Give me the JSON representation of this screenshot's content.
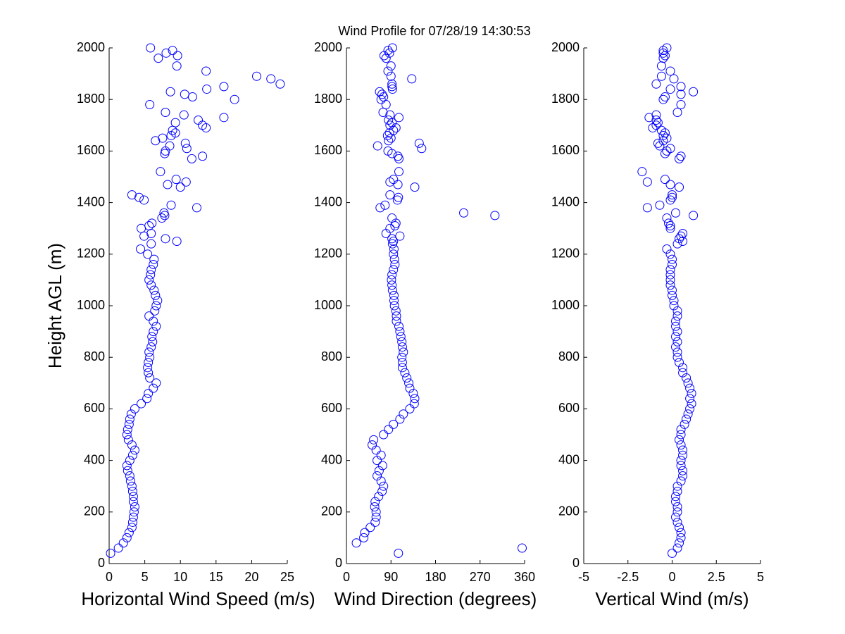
{
  "chart_data": [
    {
      "type": "scatter",
      "title": "Wind Profile for  07/28/19 14:30:53",
      "xlabel": "Horizontal Wind Speed (m/s)",
      "ylabel": "Height AGL (m)",
      "color": "#0000ff",
      "xlim": [
        0,
        25
      ],
      "xticks": [
        0,
        5,
        10,
        15,
        20,
        25
      ],
      "ylim": [
        0,
        2000
      ],
      "yticks": [
        0,
        200,
        400,
        600,
        800,
        1000,
        1200,
        1400,
        1600,
        1800,
        2000
      ],
      "y": [
        40,
        60,
        80,
        100,
        120,
        140,
        160,
        180,
        200,
        220,
        240,
        260,
        280,
        300,
        320,
        340,
        360,
        380,
        400,
        420,
        440,
        460,
        480,
        500,
        520,
        540,
        560,
        580,
        600,
        620,
        640,
        660,
        680,
        700,
        720,
        740,
        760,
        780,
        800,
        820,
        840,
        860,
        880,
        900,
        920,
        940,
        960,
        980,
        1000,
        1020,
        1040,
        1060,
        1080,
        1100,
        1120,
        1140,
        1160,
        1180,
        1200,
        1220,
        1240,
        1250,
        1260,
        1270,
        1280,
        1300,
        1310,
        1320,
        1340,
        1350,
        1360,
        1380,
        1390,
        1410,
        1420,
        1430,
        1460,
        1470,
        1480,
        1490,
        1520,
        1570,
        1580,
        1590,
        1600,
        1610,
        1620,
        1630,
        1640,
        1650,
        1660,
        1670,
        1680,
        1690,
        1700,
        1710,
        1720,
        1730,
        1740,
        1750,
        1780,
        1800,
        1810,
        1820,
        1830,
        1840,
        1850,
        1860,
        1880,
        1890,
        1910,
        1930,
        1960,
        1970,
        1980,
        1990,
        2000
      ],
      "x": [
        0.2,
        1.3,
        2.0,
        2.5,
        2.8,
        3.2,
        3.3,
        3.4,
        3.5,
        3.6,
        3.4,
        3.4,
        3.3,
        3.2,
        3.0,
        2.9,
        2.6,
        2.5,
        2.9,
        3.3,
        3.6,
        3.2,
        2.7,
        2.5,
        2.6,
        2.8,
        2.9,
        3.1,
        3.6,
        4.5,
        5.3,
        5.5,
        6.2,
        6.6,
        5.7,
        5.5,
        5.4,
        5.5,
        5.7,
        5.6,
        5.9,
        6.1,
        6.0,
        6.2,
        6.6,
        6.2,
        5.6,
        6.4,
        6.6,
        6.8,
        6.5,
        6.3,
        5.9,
        5.6,
        5.8,
        5.9,
        6.2,
        6.3,
        5.4,
        4.4,
        5.9,
        9.5,
        7.9,
        4.9,
        5.9,
        4.5,
        5.6,
        6.0,
        7.4,
        7.8,
        7.7,
        12.3,
        8.7,
        4.9,
        4.2,
        3.2,
        10.0,
        8.2,
        10.8,
        9.4,
        7.2,
        11.6,
        13.1,
        7.8,
        7.9,
        10.9,
        8.5,
        10.7,
        6.5,
        7.5,
        8.7,
        9.3,
        8.9,
        13.6,
        13.1,
        9.3,
        12.5,
        16.1,
        10.5,
        7.9,
        5.7,
        17.6,
        11.7,
        10.6,
        8.6,
        13.7,
        16.1,
        24.0,
        22.7,
        20.7,
        13.6,
        9.5,
        6.9,
        9.6,
        8.0,
        8.9,
        5.8
      ]
    },
    {
      "type": "scatter",
      "xlabel": "Wind Direction (degrees)",
      "color": "#0000ff",
      "xlim": [
        0,
        360
      ],
      "xticks": [
        0,
        90,
        180,
        270,
        360
      ],
      "ylim": [
        0,
        2000
      ],
      "yticks": [
        0,
        200,
        400,
        600,
        800,
        1000,
        1200,
        1400,
        1600,
        1800,
        2000
      ],
      "y": [
        40,
        60,
        80,
        100,
        120,
        140,
        160,
        180,
        200,
        220,
        240,
        260,
        280,
        300,
        320,
        340,
        360,
        380,
        400,
        420,
        440,
        460,
        480,
        500,
        520,
        540,
        560,
        580,
        600,
        620,
        640,
        660,
        680,
        700,
        720,
        740,
        760,
        780,
        800,
        820,
        840,
        860,
        880,
        900,
        920,
        940,
        960,
        980,
        1000,
        1020,
        1040,
        1060,
        1080,
        1100,
        1120,
        1140,
        1160,
        1180,
        1200,
        1220,
        1240,
        1250,
        1260,
        1270,
        1280,
        1300,
        1310,
        1320,
        1340,
        1350,
        1360,
        1380,
        1390,
        1410,
        1420,
        1430,
        1460,
        1470,
        1480,
        1490,
        1520,
        1570,
        1580,
        1590,
        1600,
        1610,
        1620,
        1630,
        1640,
        1650,
        1660,
        1670,
        1680,
        1690,
        1700,
        1710,
        1720,
        1730,
        1740,
        1750,
        1780,
        1800,
        1810,
        1820,
        1830,
        1840,
        1850,
        1860,
        1880,
        1890,
        1910,
        1930,
        1960,
        1970,
        1980,
        1990,
        2000
      ],
      "x": [
        105,
        355,
        20,
        35,
        37,
        48,
        58,
        60,
        60,
        57,
        58,
        65,
        72,
        75,
        70,
        62,
        66,
        73,
        62,
        70,
        60,
        52,
        55,
        75,
        85,
        95,
        108,
        115,
        128,
        137,
        138,
        135,
        128,
        126,
        122,
        118,
        113,
        113,
        112,
        115,
        113,
        112,
        110,
        108,
        106,
        101,
        101,
        100,
        97,
        96,
        96,
        93,
        92,
        91,
        92,
        95,
        98,
        97,
        95,
        96,
        93,
        95,
        92,
        108,
        80,
        88,
        98,
        100,
        92,
        300,
        237,
        68,
        78,
        103,
        105,
        88,
        138,
        104,
        88,
        95,
        106,
        106,
        104,
        92,
        84,
        152,
        63,
        147,
        85,
        90,
        83,
        87,
        95,
        100,
        88,
        92,
        85,
        106,
        88,
        74,
        80,
        70,
        75,
        72,
        67,
        93,
        92,
        92,
        132,
        90,
        84,
        90,
        80,
        76,
        87,
        84,
        93
      ]
    },
    {
      "type": "scatter",
      "xlabel": "Vertical Wind (m/s)",
      "color": "#0000ff",
      "xlim": [
        -5,
        5
      ],
      "xticks": [
        -5,
        -2.5,
        0,
        2.5,
        5
      ],
      "ylim": [
        0,
        2000
      ],
      "yticks": [
        0,
        200,
        400,
        600,
        800,
        1000,
        1200,
        1400,
        1600,
        1800,
        2000
      ],
      "y": [
        40,
        60,
        80,
        100,
        120,
        140,
        160,
        180,
        200,
        220,
        240,
        260,
        280,
        300,
        320,
        340,
        360,
        380,
        400,
        420,
        440,
        460,
        480,
        500,
        520,
        540,
        560,
        580,
        600,
        620,
        640,
        660,
        680,
        700,
        720,
        740,
        760,
        780,
        800,
        820,
        840,
        860,
        880,
        900,
        920,
        940,
        960,
        980,
        1000,
        1020,
        1040,
        1060,
        1080,
        1100,
        1120,
        1140,
        1160,
        1180,
        1200,
        1220,
        1240,
        1250,
        1260,
        1270,
        1280,
        1300,
        1310,
        1320,
        1340,
        1350,
        1360,
        1380,
        1390,
        1410,
        1420,
        1430,
        1460,
        1470,
        1480,
        1490,
        1520,
        1570,
        1580,
        1590,
        1600,
        1610,
        1620,
        1630,
        1640,
        1650,
        1660,
        1670,
        1680,
        1690,
        1700,
        1710,
        1720,
        1730,
        1740,
        1750,
        1780,
        1800,
        1810,
        1820,
        1830,
        1840,
        1850,
        1860,
        1880,
        1890,
        1910,
        1930,
        1960,
        1970,
        1980,
        1990,
        2000
      ],
      "x": [
        0.0,
        0.3,
        0.4,
        0.5,
        0.5,
        0.4,
        0.3,
        0.2,
        0.3,
        0.3,
        0.2,
        0.2,
        0.3,
        0.3,
        0.5,
        0.6,
        0.6,
        0.5,
        0.5,
        0.6,
        0.6,
        0.5,
        0.4,
        0.5,
        0.5,
        0.7,
        0.8,
        0.9,
        1.0,
        1.1,
        1.0,
        1.1,
        1.0,
        0.9,
        0.8,
        0.6,
        0.6,
        0.4,
        0.3,
        0.3,
        0.2,
        0.3,
        0.2,
        0.3,
        0.2,
        0.2,
        0.3,
        0.3,
        0.1,
        0.1,
        0.0,
        0.0,
        -0.1,
        -0.1,
        -0.1,
        -0.1,
        0.0,
        0.0,
        -0.1,
        -0.3,
        0.3,
        0.6,
        0.4,
        0.5,
        0.6,
        -0.1,
        -0.1,
        -0.2,
        -0.3,
        1.2,
        0.2,
        -1.4,
        -0.7,
        -0.1,
        0.0,
        0.0,
        0.4,
        -0.1,
        -1.4,
        -0.4,
        -1.7,
        0.4,
        0.5,
        -0.4,
        -0.3,
        -0.1,
        -0.7,
        -0.8,
        -0.5,
        -0.3,
        -0.5,
        -0.4,
        -0.6,
        -1.1,
        -0.9,
        -0.8,
        -0.9,
        -1.3,
        -0.9,
        0.3,
        0.5,
        -0.5,
        -0.4,
        0.5,
        1.2,
        -0.1,
        0.5,
        -0.9,
        0.1,
        -0.6,
        -0.1,
        -0.6,
        -0.5,
        -0.4,
        -0.5,
        -0.5,
        -0.3
      ]
    }
  ]
}
